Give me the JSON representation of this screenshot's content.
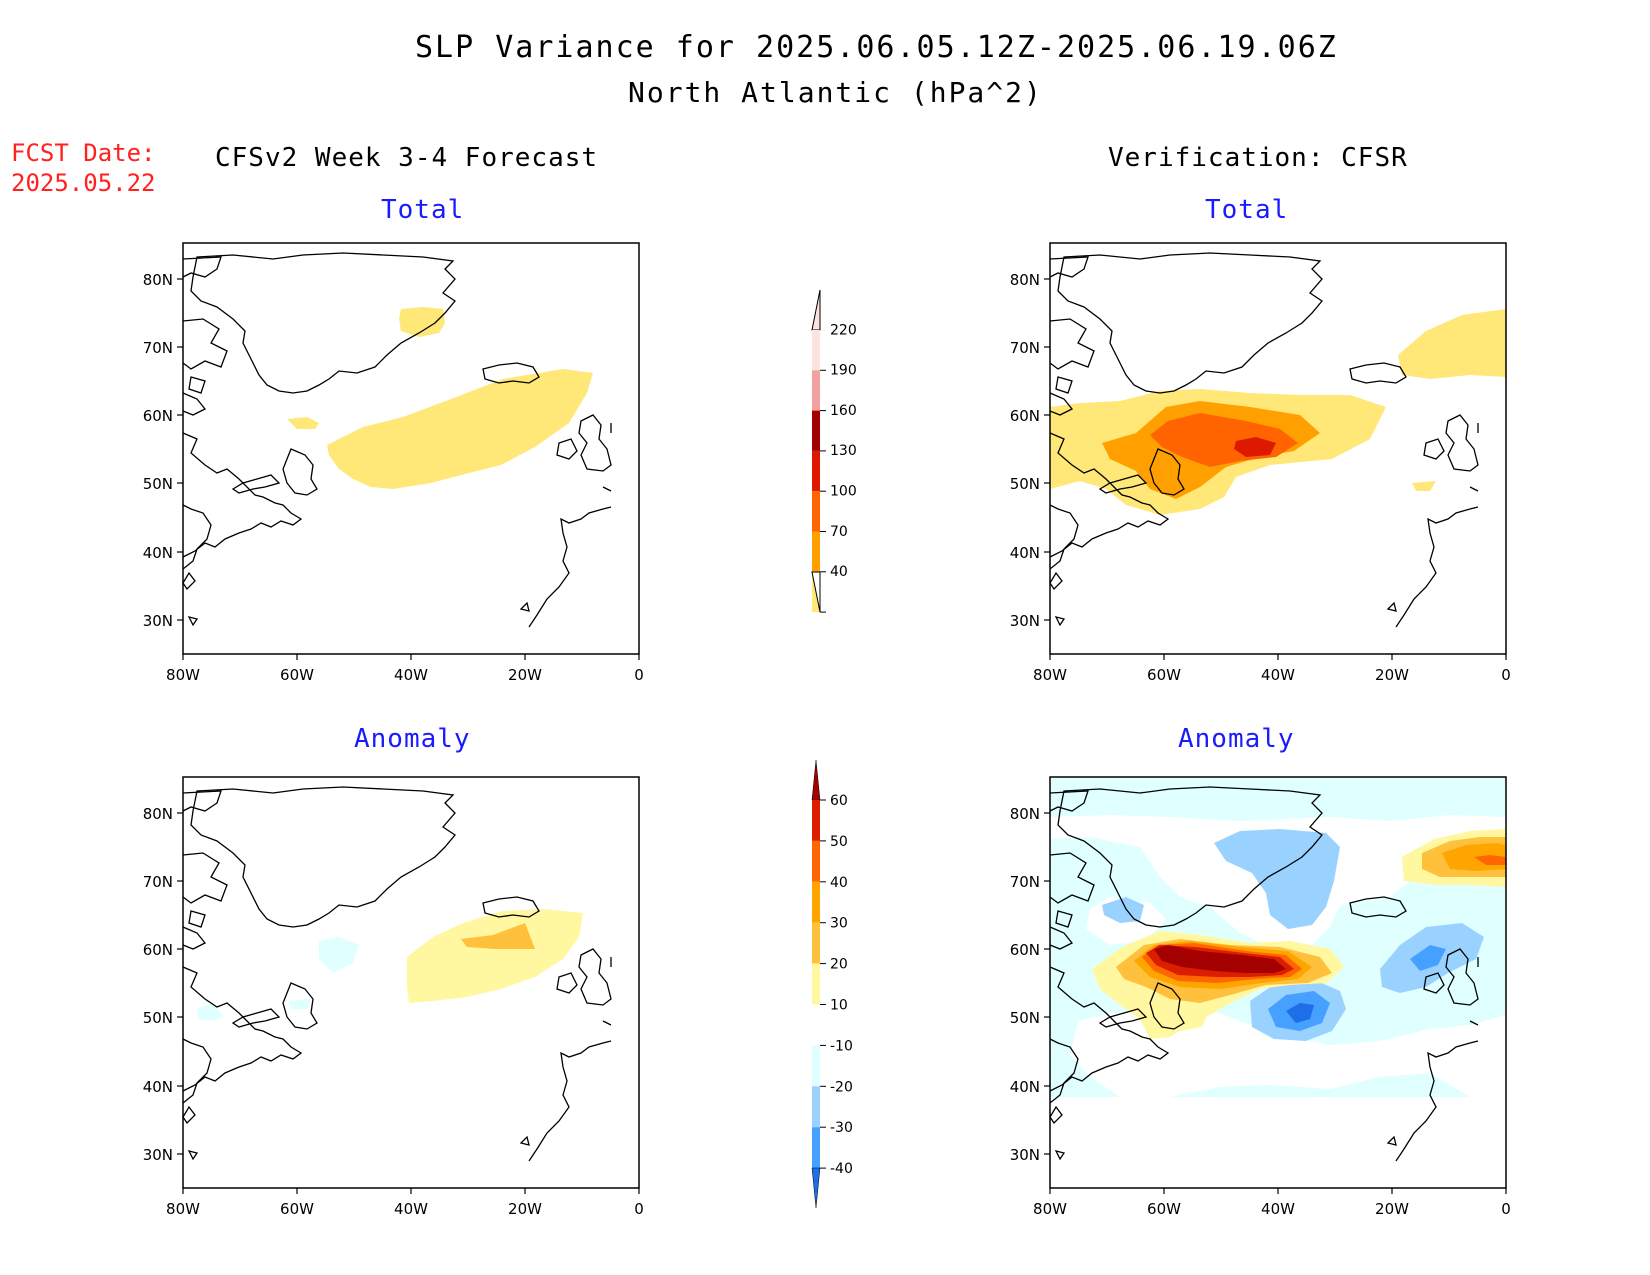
{
  "title": "SLP Variance for 2025.06.05.12Z-2025.06.19.06Z",
  "subtitle": "North Atlantic (hPa^2)",
  "fcst_label": "FCST Date:",
  "fcst_date": "2025.05.22",
  "left_heading": "CFSv2 Week 3-4 Forecast",
  "right_heading": "Verification: CFSR",
  "panels": {
    "top_left_title": "Total",
    "top_right_title": "Total",
    "bottom_left_title": "Anomaly",
    "bottom_right_title": "Anomaly"
  },
  "axes": {
    "lat_labels": [
      "80N",
      "70N",
      "60N",
      "50N",
      "40N",
      "30N"
    ],
    "lon_labels": [
      "80W",
      "60W",
      "40W",
      "20W",
      "0"
    ]
  },
  "colorbars": {
    "total": {
      "labels": [
        "220",
        "190",
        "160",
        "130",
        "100",
        "70",
        "40"
      ],
      "colors": [
        "#fde2e2",
        "#f2a0a0",
        "#a10000",
        "#dd1a00",
        "#ff6400",
        "#ffa000",
        "#ffe878"
      ]
    },
    "anomaly": {
      "labels": [
        "60",
        "50",
        "40",
        "30",
        "20",
        "10",
        "-10",
        "-20",
        "-30",
        "-40"
      ],
      "colors": [
        "#a50000",
        "#dc1e00",
        "#ff6600",
        "#ffa500",
        "#ffc03c",
        "#fff8a0",
        "#ffffff",
        "#e0ffff",
        "#9ad2ff",
        "#46a0ff",
        "#1e6ee8"
      ]
    }
  },
  "colors": {
    "title_blue": "#1a1aff",
    "fcst_red": "#ff2020"
  }
}
